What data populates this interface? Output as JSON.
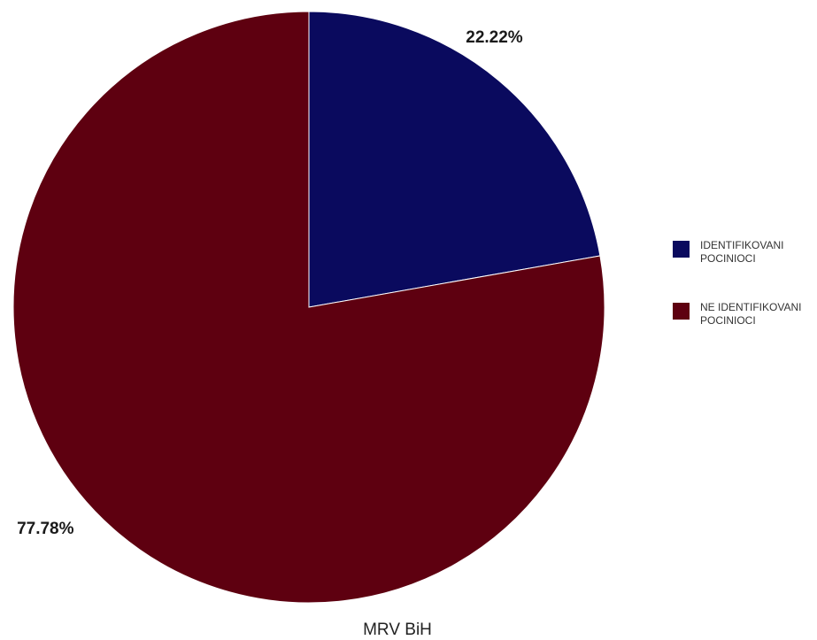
{
  "colors": {
    "identified": "#0a0a5e",
    "not_identified": "#5e0010",
    "background": "#ffffff"
  },
  "chart_data": {
    "type": "pie",
    "title": "",
    "xlabel": "MRV BiH",
    "legend_position": "right",
    "slices": [
      {
        "name": "IDENTIFIKOVANI POCINIOCI",
        "value": 22.22,
        "label": "22.22%",
        "color": "#0a0a5e"
      },
      {
        "name": "NE IDENTIFIKOVANI POCINIOCI",
        "value": 77.78,
        "label": "77.78%",
        "color": "#5e0010"
      }
    ]
  }
}
